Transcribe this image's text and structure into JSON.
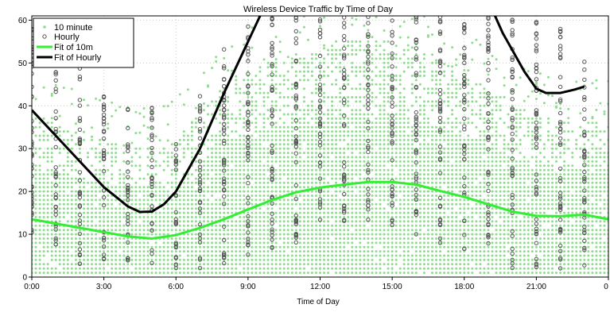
{
  "chart_data": {
    "type": "scatter",
    "title": "Wireless Device Traffic by Time of Day",
    "xlabel": "Time of Day",
    "ylabel": "",
    "xlim": [
      0,
      24
    ],
    "ylim": [
      0,
      61
    ],
    "x_ticks": [
      "0:00",
      "3:00",
      "6:00",
      "9:00",
      "12:00",
      "15:00",
      "18:00",
      "21:00",
      "0"
    ],
    "x_tick_values": [
      0,
      3,
      6,
      9,
      12,
      15,
      18,
      21,
      24
    ],
    "y_ticks": [
      0,
      10,
      20,
      30,
      40,
      50,
      60
    ],
    "grid": true,
    "legend_position": "top-left",
    "colors": {
      "ten_minute": "#8fdc8f",
      "hourly": "#555555",
      "fit_10m": "#33ee33",
      "fit_hourly": "#000000"
    },
    "series": [
      {
        "name": "10 minute",
        "kind": "points",
        "marker": "filled-dot",
        "band_description_by_hour": [
          {
            "x": 0,
            "y_min": 1,
            "y_max": 38
          },
          {
            "x": 1,
            "y_min": 1,
            "y_max": 36
          },
          {
            "x": 2,
            "y_min": 1,
            "y_max": 33
          },
          {
            "x": 3,
            "y_min": 1,
            "y_max": 32
          },
          {
            "x": 4,
            "y_min": 1,
            "y_max": 30
          },
          {
            "x": 5,
            "y_min": 1,
            "y_max": 30
          },
          {
            "x": 6,
            "y_min": 1,
            "y_max": 32
          },
          {
            "x": 7,
            "y_min": 1,
            "y_max": 38
          },
          {
            "x": 8,
            "y_min": 1,
            "y_max": 44
          },
          {
            "x": 9,
            "y_min": 1,
            "y_max": 48
          },
          {
            "x": 10,
            "y_min": 1,
            "y_max": 50
          },
          {
            "x": 11,
            "y_min": 1,
            "y_max": 52
          },
          {
            "x": 12,
            "y_min": 1,
            "y_max": 53
          },
          {
            "x": 13,
            "y_min": 1,
            "y_max": 55
          },
          {
            "x": 14,
            "y_min": 1,
            "y_max": 55
          },
          {
            "x": 15,
            "y_min": 1,
            "y_max": 55
          },
          {
            "x": 16,
            "y_min": 1,
            "y_max": 53
          },
          {
            "x": 17,
            "y_min": 1,
            "y_max": 50
          },
          {
            "x": 18,
            "y_min": 1,
            "y_max": 47
          },
          {
            "x": 19,
            "y_min": 1,
            "y_max": 44
          },
          {
            "x": 20,
            "y_min": 1,
            "y_max": 40
          },
          {
            "x": 21,
            "y_min": 1,
            "y_max": 38
          },
          {
            "x": 22,
            "y_min": 1,
            "y_max": 36
          },
          {
            "x": 23,
            "y_min": 1,
            "y_max": 36
          },
          {
            "x": 24,
            "y_min": 1,
            "y_max": 36
          }
        ]
      },
      {
        "name": "Hourly",
        "kind": "points",
        "marker": "open-circle",
        "column_ranges": [
          {
            "x": 0,
            "y_min": 8,
            "y_max": 58
          },
          {
            "x": 1,
            "y_min": 6,
            "y_max": 48
          },
          {
            "x": 2,
            "y_min": 3,
            "y_max": 55
          },
          {
            "x": 3,
            "y_min": 3,
            "y_max": 44
          },
          {
            "x": 4,
            "y_min": 3,
            "y_max": 42
          },
          {
            "x": 5,
            "y_min": 2,
            "y_max": 44
          },
          {
            "x": 6,
            "y_min": 2,
            "y_max": 32
          },
          {
            "x": 7,
            "y_min": 2,
            "y_max": 43
          },
          {
            "x": 8,
            "y_min": 3,
            "y_max": 58
          },
          {
            "x": 9,
            "y_min": 4,
            "y_max": 61
          },
          {
            "x": 10,
            "y_min": 6,
            "y_max": 61
          },
          {
            "x": 11,
            "y_min": 8,
            "y_max": 61
          },
          {
            "x": 12,
            "y_min": 10,
            "y_max": 61
          },
          {
            "x": 13,
            "y_min": 12,
            "y_max": 61
          },
          {
            "x": 14,
            "y_min": 12,
            "y_max": 61
          },
          {
            "x": 15,
            "y_min": 12,
            "y_max": 61
          },
          {
            "x": 16,
            "y_min": 10,
            "y_max": 61
          },
          {
            "x": 17,
            "y_min": 8,
            "y_max": 61
          },
          {
            "x": 18,
            "y_min": 6,
            "y_max": 61
          },
          {
            "x": 19,
            "y_min": 4,
            "y_max": 61
          },
          {
            "x": 20,
            "y_min": 2,
            "y_max": 61
          },
          {
            "x": 21,
            "y_min": 2,
            "y_max": 61
          },
          {
            "x": 22,
            "y_min": 2,
            "y_max": 58
          },
          {
            "x": 23,
            "y_min": 2,
            "y_max": 52
          }
        ]
      },
      {
        "name": "Fit of 10m",
        "kind": "line",
        "x": [
          0,
          1,
          2,
          3,
          4,
          5,
          6,
          7,
          8,
          9,
          10,
          11,
          12,
          13,
          14,
          15,
          16,
          17,
          18,
          19,
          20,
          21,
          22,
          23,
          24
        ],
        "y": [
          13.5,
          12.5,
          11.5,
          10.5,
          9.5,
          9.0,
          9.8,
          11.5,
          13.5,
          15.8,
          18.0,
          19.8,
          20.9,
          21.6,
          22.2,
          22.2,
          21.6,
          20.1,
          18.7,
          17.0,
          15.3,
          14.3,
          14.2,
          14.6,
          13.5
        ]
      },
      {
        "name": "Fit of Hourly",
        "kind": "line",
        "x": [
          0,
          1,
          2,
          3,
          4,
          4.5,
          5,
          5.5,
          6,
          7,
          8,
          9,
          9.5,
          10
        ],
        "y": [
          39,
          33,
          27,
          21,
          16.5,
          15.2,
          15.3,
          17,
          20,
          30,
          43,
          55,
          61,
          66
        ],
        "x2": [
          19.2,
          19.6,
          20,
          20.5,
          21,
          21.4,
          22,
          22.6,
          23
        ],
        "y2": [
          62,
          57,
          53,
          48,
          44,
          43,
          43,
          43.8,
          44.5
        ]
      }
    ],
    "legend": [
      "10 minute",
      "Hourly",
      "Fit of 10m",
      "Fit of Hourly"
    ]
  }
}
